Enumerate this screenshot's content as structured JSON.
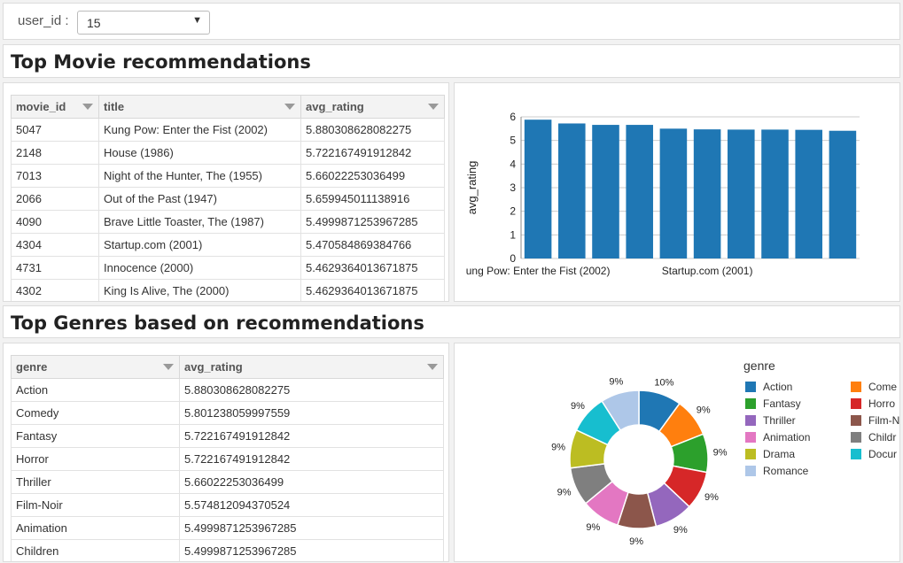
{
  "filter": {
    "label": "user_id :",
    "selected": "15"
  },
  "movies_section": {
    "title": "Top Movie recommendations"
  },
  "genres_section": {
    "title": "Top Genres based on recommendations"
  },
  "movies_table": {
    "columns": [
      "movie_id",
      "title",
      "avg_rating"
    ],
    "rows": [
      [
        "5047",
        "Kung Pow: Enter the Fist (2002)",
        "5.880308628082275"
      ],
      [
        "2148",
        "House (1986)",
        "5.722167491912842"
      ],
      [
        "7013",
        "Night of the Hunter, The (1955)",
        "5.66022253036499"
      ],
      [
        "2066",
        "Out of the Past (1947)",
        "5.659945011138916"
      ],
      [
        "4090",
        "Brave Little Toaster, The (1987)",
        "5.4999871253967285"
      ],
      [
        "4304",
        "Startup.com (2001)",
        "5.470584869384766"
      ],
      [
        "4731",
        "Innocence (2000)",
        "5.4629364013671875"
      ],
      [
        "4302",
        "King Is Alive, The (2000)",
        "5.4629364013671875"
      ]
    ]
  },
  "genres_table": {
    "columns": [
      "genre",
      "avg_rating"
    ],
    "rows": [
      [
        "Action",
        "5.880308628082275"
      ],
      [
        "Comedy",
        "5.801238059997559"
      ],
      [
        "Fantasy",
        "5.722167491912842"
      ],
      [
        "Horror",
        "5.722167491912842"
      ],
      [
        "Thriller",
        "5.66022253036499"
      ],
      [
        "Film-Noir",
        "5.574812094370524"
      ],
      [
        "Animation",
        "5.4999871253967285"
      ],
      [
        "Children",
        "5.4999871253967285"
      ]
    ]
  },
  "chart_data": [
    {
      "type": "bar",
      "ylabel": "avg_rating",
      "ylim": [
        0,
        6
      ],
      "yticks": [
        "0",
        "1",
        "2",
        "3",
        "4",
        "5",
        "6"
      ],
      "xtick_labels": [
        "ung Pow: Enter the Fist (2002)",
        "Startup.com (2001)"
      ],
      "values": [
        5.88,
        5.72,
        5.66,
        5.66,
        5.5,
        5.47,
        5.46,
        5.46,
        5.45,
        5.41
      ],
      "color": "#1f77b4",
      "grid": true
    },
    {
      "type": "pie",
      "legend_title": "genre",
      "legend_position": "right",
      "slices": [
        {
          "label": "Action",
          "legend": "Action",
          "pct": "10%",
          "value": 10,
          "color": "#1f77b4"
        },
        {
          "label": "Comedy",
          "legend": "Come",
          "pct": "9%",
          "value": 9,
          "color": "#ff7f0e"
        },
        {
          "label": "Fantasy",
          "legend": "Fantasy",
          "pct": "9%",
          "value": 9,
          "color": "#2ca02c"
        },
        {
          "label": "Horror",
          "legend": "Horro",
          "pct": "9%",
          "value": 9,
          "color": "#d62728"
        },
        {
          "label": "Thriller",
          "legend": "Thriller",
          "pct": "9%",
          "value": 9,
          "color": "#9467bd"
        },
        {
          "label": "Film-Noir",
          "legend": "Film-N",
          "pct": "9%",
          "value": 9,
          "color": "#8c564b"
        },
        {
          "label": "Animation",
          "legend": "Animation",
          "pct": "9%",
          "value": 9,
          "color": "#e377c2"
        },
        {
          "label": "Children",
          "legend": "Childr",
          "pct": "9%",
          "value": 9,
          "color": "#7f7f7f"
        },
        {
          "label": "Drama",
          "legend": "Drama",
          "pct": "9%",
          "value": 9,
          "color": "#bcbd22"
        },
        {
          "label": "Documentary",
          "legend": "Docur",
          "pct": "9%",
          "value": 9,
          "color": "#17becf"
        },
        {
          "label": "Romance",
          "legend": "Romance",
          "pct": "9%",
          "value": 9,
          "color": "#aec7e8"
        }
      ]
    }
  ]
}
